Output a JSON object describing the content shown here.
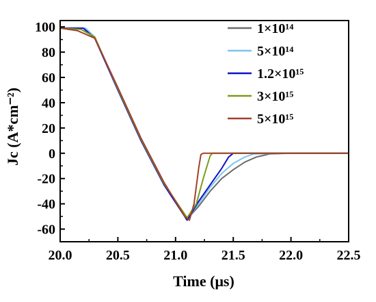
{
  "chart_data": {
    "type": "line",
    "xlabel": "Time (μs)",
    "ylabel": "Jc (A*cm⁻²)",
    "xlim": [
      20.0,
      22.5
    ],
    "ylim": [
      -70,
      105
    ],
    "xticks": [
      "20.0",
      "20.5",
      "21.0",
      "21.5",
      "22.0",
      "22.5"
    ],
    "yticks": [
      "100",
      "80",
      "60",
      "40",
      "20",
      "0",
      "-20",
      "-40",
      "-60"
    ],
    "legend_position": "top-right",
    "grid": false,
    "series": [
      {
        "name": "1×10¹⁴",
        "color": "#6b6b6b",
        "points": [
          [
            20.0,
            99
          ],
          [
            20.2,
            99
          ],
          [
            20.3,
            92
          ],
          [
            20.5,
            50
          ],
          [
            20.7,
            10
          ],
          [
            20.9,
            -25
          ],
          [
            21.1,
            -52
          ],
          [
            21.2,
            -42
          ],
          [
            21.3,
            -30
          ],
          [
            21.4,
            -20
          ],
          [
            21.5,
            -13
          ],
          [
            21.6,
            -7
          ],
          [
            21.7,
            -3
          ],
          [
            21.82,
            -0.5
          ],
          [
            22.0,
            0
          ],
          [
            22.5,
            0
          ]
        ]
      },
      {
        "name": "5×10¹⁴",
        "color": "#7cc4ee",
        "points": [
          [
            20.0,
            99
          ],
          [
            20.22,
            99
          ],
          [
            20.3,
            92
          ],
          [
            20.5,
            50
          ],
          [
            20.7,
            10
          ],
          [
            20.9,
            -25
          ],
          [
            21.1,
            -52
          ],
          [
            21.2,
            -40
          ],
          [
            21.3,
            -27
          ],
          [
            21.4,
            -16
          ],
          [
            21.5,
            -8
          ],
          [
            21.6,
            -3
          ],
          [
            21.68,
            -0.5
          ],
          [
            22.0,
            0
          ],
          [
            22.5,
            0
          ]
        ]
      },
      {
        "name": "1.2×10¹⁵",
        "color": "#1010c8",
        "points": [
          [
            20.0,
            99
          ],
          [
            20.2,
            99
          ],
          [
            20.3,
            91
          ],
          [
            20.5,
            50
          ],
          [
            20.7,
            10
          ],
          [
            20.9,
            -25
          ],
          [
            21.1,
            -53
          ],
          [
            21.2,
            -38
          ],
          [
            21.3,
            -25
          ],
          [
            21.4,
            -12
          ],
          [
            21.46,
            -3
          ],
          [
            21.5,
            0
          ],
          [
            22.0,
            0
          ],
          [
            22.5,
            0
          ]
        ]
      },
      {
        "name": "3×10¹⁵",
        "color": "#7a9c1a",
        "points": [
          [
            20.0,
            99
          ],
          [
            20.18,
            98
          ],
          [
            20.3,
            92
          ],
          [
            20.5,
            51
          ],
          [
            20.7,
            11
          ],
          [
            20.9,
            -24
          ],
          [
            21.1,
            -51
          ],
          [
            21.18,
            -40
          ],
          [
            21.24,
            -20
          ],
          [
            21.3,
            -2
          ],
          [
            21.32,
            0
          ],
          [
            22.0,
            0
          ],
          [
            22.5,
            0
          ]
        ]
      },
      {
        "name": "5×10¹⁵",
        "color": "#a0402a",
        "points": [
          [
            20.0,
            99
          ],
          [
            20.15,
            97
          ],
          [
            20.3,
            91
          ],
          [
            20.5,
            52
          ],
          [
            20.7,
            12
          ],
          [
            20.9,
            -23
          ],
          [
            21.08,
            -50
          ],
          [
            21.12,
            -53
          ],
          [
            21.16,
            -40
          ],
          [
            21.2,
            -12
          ],
          [
            21.22,
            -1
          ],
          [
            21.24,
            0
          ],
          [
            22.0,
            0
          ],
          [
            22.5,
            0
          ]
        ]
      }
    ]
  }
}
